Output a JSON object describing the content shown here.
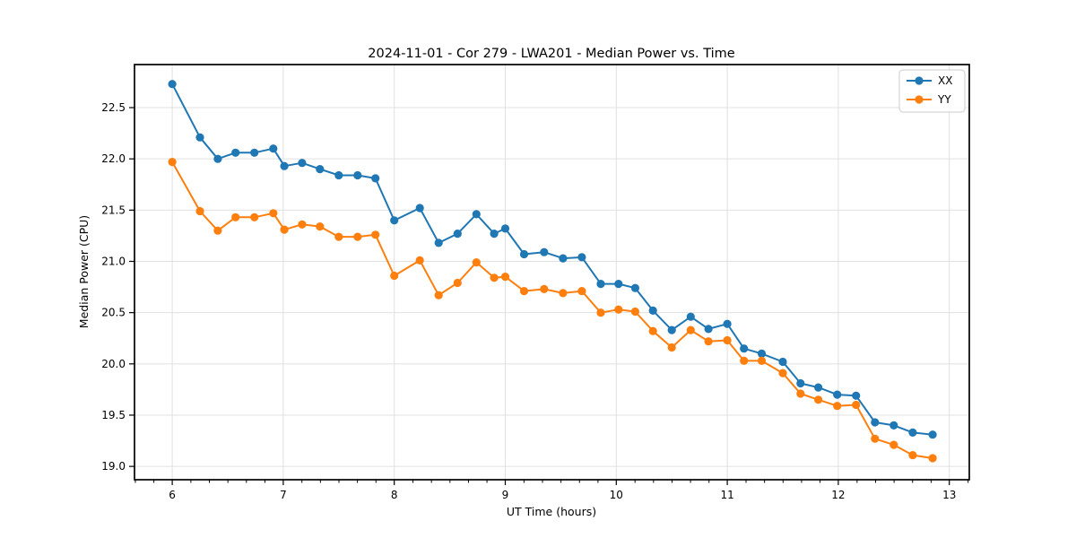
{
  "chart_data": {
    "type": "line",
    "title": "2024-11-01 - Cor 279 - LWA201 - Median Power vs. Time",
    "xlabel": "UT Time (hours)",
    "ylabel": "Median Power (CPU)",
    "xlim": [
      5.66,
      13.18
    ],
    "ylim": [
      18.87,
      22.92
    ],
    "xticks": [
      6,
      7,
      8,
      9,
      10,
      11,
      12,
      13
    ],
    "yticks": [
      19.0,
      19.5,
      20.0,
      20.5,
      21.0,
      21.5,
      22.0,
      22.5
    ],
    "minor_tick_step_x": 0.1667,
    "grid": true,
    "legend_position": "upper right",
    "marker": "circle",
    "x": [
      6.0,
      6.25,
      6.41,
      6.57,
      6.74,
      6.91,
      7.01,
      7.17,
      7.33,
      7.5,
      7.67,
      7.83,
      8.0,
      8.23,
      8.4,
      8.57,
      8.74,
      8.9,
      9.0,
      9.17,
      9.35,
      9.52,
      9.69,
      9.86,
      10.02,
      10.17,
      10.33,
      10.5,
      10.67,
      10.83,
      11.0,
      11.15,
      11.31,
      11.5,
      11.66,
      11.82,
      11.99,
      12.16,
      12.33,
      12.5,
      12.67,
      12.85
    ],
    "series": [
      {
        "name": "XX",
        "color": "#1f77b4",
        "values": [
          22.73,
          22.21,
          22.0,
          22.06,
          22.06,
          22.1,
          21.93,
          21.96,
          21.9,
          21.84,
          21.84,
          21.81,
          21.4,
          21.52,
          21.18,
          21.27,
          21.46,
          21.27,
          21.32,
          21.07,
          21.09,
          21.03,
          21.04,
          20.78,
          20.78,
          20.74,
          20.52,
          20.33,
          20.46,
          20.34,
          20.39,
          20.15,
          20.1,
          20.02,
          19.81,
          19.77,
          19.7,
          19.69,
          19.43,
          19.4,
          19.33,
          19.31
        ]
      },
      {
        "name": "YY",
        "color": "#ff7f0e",
        "values": [
          21.97,
          21.49,
          21.3,
          21.43,
          21.43,
          21.47,
          21.31,
          21.36,
          21.34,
          21.24,
          21.24,
          21.26,
          20.86,
          21.01,
          20.67,
          20.79,
          20.99,
          20.84,
          20.85,
          20.71,
          20.73,
          20.69,
          20.71,
          20.5,
          20.53,
          20.51,
          20.32,
          20.16,
          20.33,
          20.22,
          20.23,
          20.03,
          20.03,
          19.91,
          19.71,
          19.65,
          19.59,
          19.6,
          19.27,
          19.21,
          19.11,
          19.08
        ]
      }
    ],
    "grid_color": "#e0e0e0",
    "spine_color": "#000000",
    "background_color": "#ffffff"
  }
}
